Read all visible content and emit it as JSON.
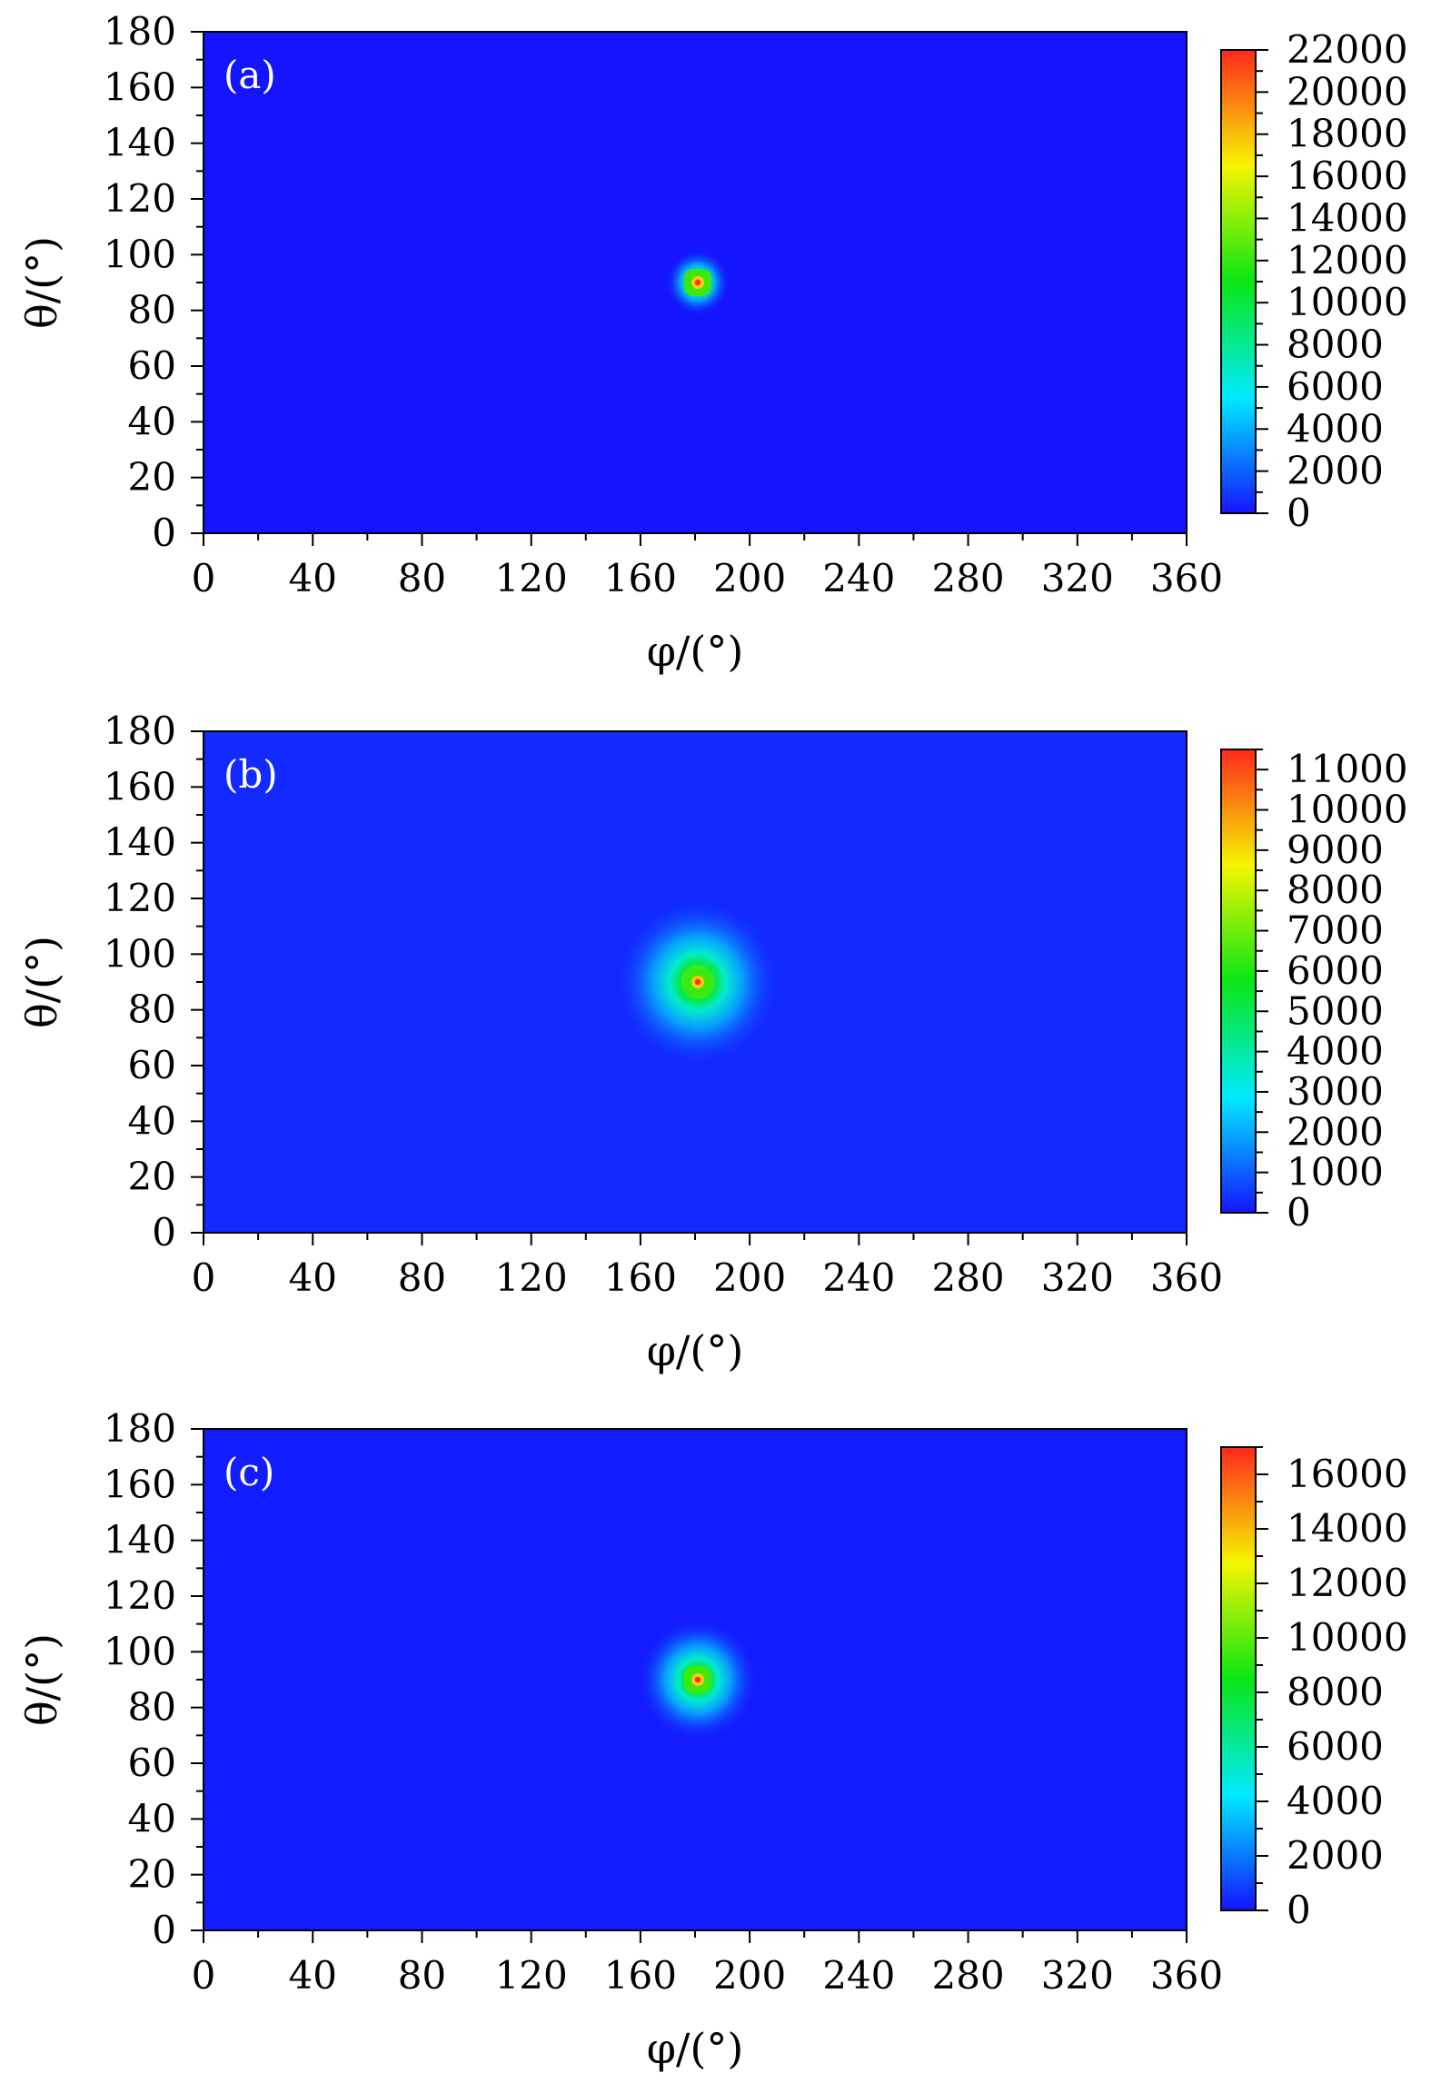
{
  "chart_data": [
    {
      "type": "heatmap",
      "panel_label": "(a)",
      "xlabel": "φ/(°)",
      "ylabel": "θ/(°)",
      "xlim": [
        0,
        360
      ],
      "ylim": [
        0,
        180
      ],
      "x_ticks": [
        0,
        40,
        80,
        120,
        160,
        200,
        240,
        280,
        320,
        360
      ],
      "y_ticks": [
        0,
        20,
        40,
        60,
        80,
        100,
        120,
        140,
        160,
        180
      ],
      "colorbar": {
        "min": 0,
        "max": 22000,
        "ticks": [
          0,
          2000,
          4000,
          6000,
          8000,
          10000,
          12000,
          14000,
          16000,
          18000,
          20000,
          22000
        ],
        "colormap": "rainbow-blue-to-red"
      },
      "peak": {
        "phi": 181,
        "theta": 90,
        "value": 22000
      },
      "background_value": 0,
      "halo_width_deg": 12
    },
    {
      "type": "heatmap",
      "panel_label": "(b)",
      "xlabel": "φ/(°)",
      "ylabel": "θ/(°)",
      "xlim": [
        0,
        360
      ],
      "ylim": [
        0,
        180
      ],
      "x_ticks": [
        0,
        40,
        80,
        120,
        160,
        200,
        240,
        280,
        320,
        360
      ],
      "y_ticks": [
        0,
        20,
        40,
        60,
        80,
        100,
        120,
        140,
        160,
        180
      ],
      "colorbar": {
        "min": 0,
        "max": 11500,
        "ticks": [
          0,
          1000,
          2000,
          3000,
          4000,
          5000,
          6000,
          7000,
          8000,
          9000,
          10000,
          11000
        ],
        "colormap": "rainbow-blue-to-red"
      },
      "peak": {
        "phi": 181,
        "theta": 90,
        "value": 11500
      },
      "background_value": 300,
      "halo_width_deg": 30
    },
    {
      "type": "heatmap",
      "panel_label": "(c)",
      "xlabel": "φ/(°)",
      "ylabel": "θ/(°)",
      "xlim": [
        0,
        360
      ],
      "ylim": [
        0,
        180
      ],
      "x_ticks": [
        0,
        40,
        80,
        120,
        160,
        200,
        240,
        280,
        320,
        360
      ],
      "y_ticks": [
        0,
        20,
        40,
        60,
        80,
        100,
        120,
        140,
        160,
        180
      ],
      "colorbar": {
        "min": 0,
        "max": 17000,
        "ticks": [
          0,
          2000,
          4000,
          6000,
          8000,
          10000,
          12000,
          14000,
          16000
        ],
        "colormap": "rainbow-blue-to-red"
      },
      "peak": {
        "phi": 181,
        "theta": 90,
        "value": 17000
      },
      "background_value": 150,
      "halo_width_deg": 22
    }
  ]
}
